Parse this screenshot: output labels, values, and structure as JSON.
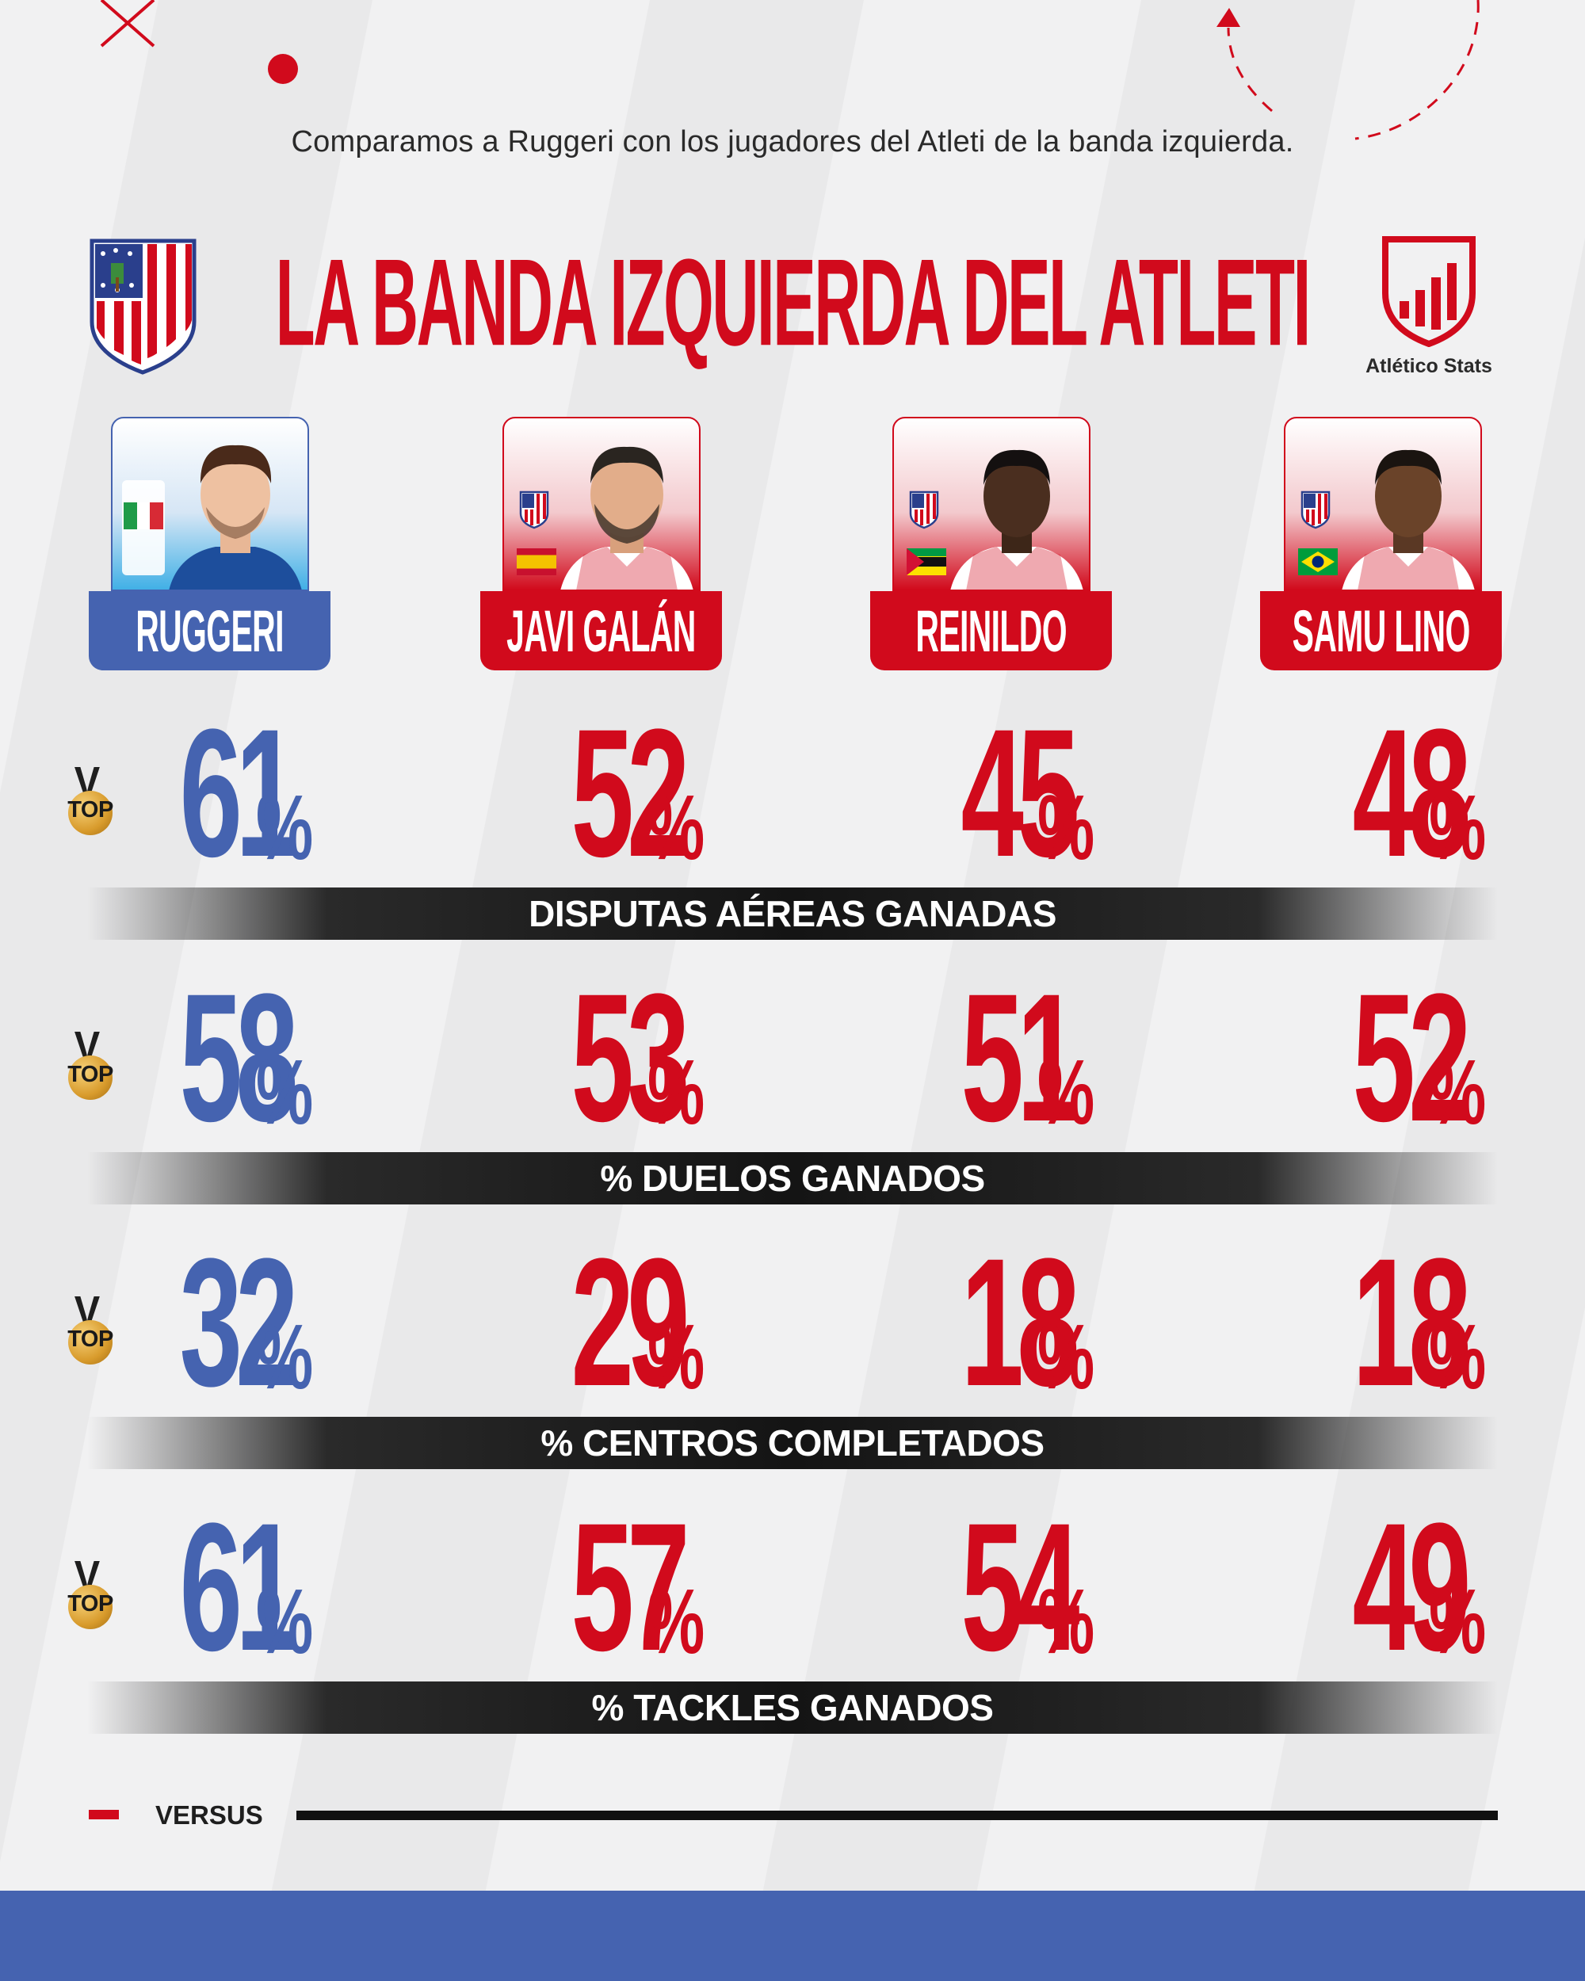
{
  "subtitle": "Comparamos a Ruggeri con los jugadores del Atleti de la banda izquierda.",
  "title": "LA BANDA IZQUIERDA DEL ATLETI",
  "brand": {
    "name": "Atlético Stats"
  },
  "colors": {
    "red": "#d10a1c",
    "blue": "#4563b0",
    "dark": "#141414",
    "gold": "#d89b2c",
    "background": "#f1f1f2"
  },
  "players": [
    {
      "name": "RUGGERI",
      "flag": "italy-flag-icon",
      "color": "blue"
    },
    {
      "name": "JAVI GALÁN",
      "flag": "spain-flag-icon",
      "color": "red"
    },
    {
      "name": "REINILDO",
      "flag": "mozambique-flag-icon",
      "color": "red"
    },
    {
      "name": "SAMU LINO",
      "flag": "brazil-flag-icon",
      "color": "red"
    }
  ],
  "medal": {
    "letter": "V",
    "label": "TOP"
  },
  "stats": [
    {
      "label": "DISPUTAS AÉREAS GANADAS",
      "values": [
        "61",
        "52",
        "45",
        "48"
      ],
      "unit": "%"
    },
    {
      "label": "% DUELOS GANADOS",
      "values": [
        "58",
        "53",
        "51",
        "52"
      ],
      "unit": "%"
    },
    {
      "label": "% CENTROS COMPLETADOS",
      "values": [
        "32",
        "29",
        "18",
        "18"
      ],
      "unit": "%"
    },
    {
      "label": "% TACKLES GANADOS",
      "values": [
        "61",
        "57",
        "54",
        "49"
      ],
      "unit": "%"
    }
  ],
  "footer": {
    "label": "VERSUS"
  }
}
